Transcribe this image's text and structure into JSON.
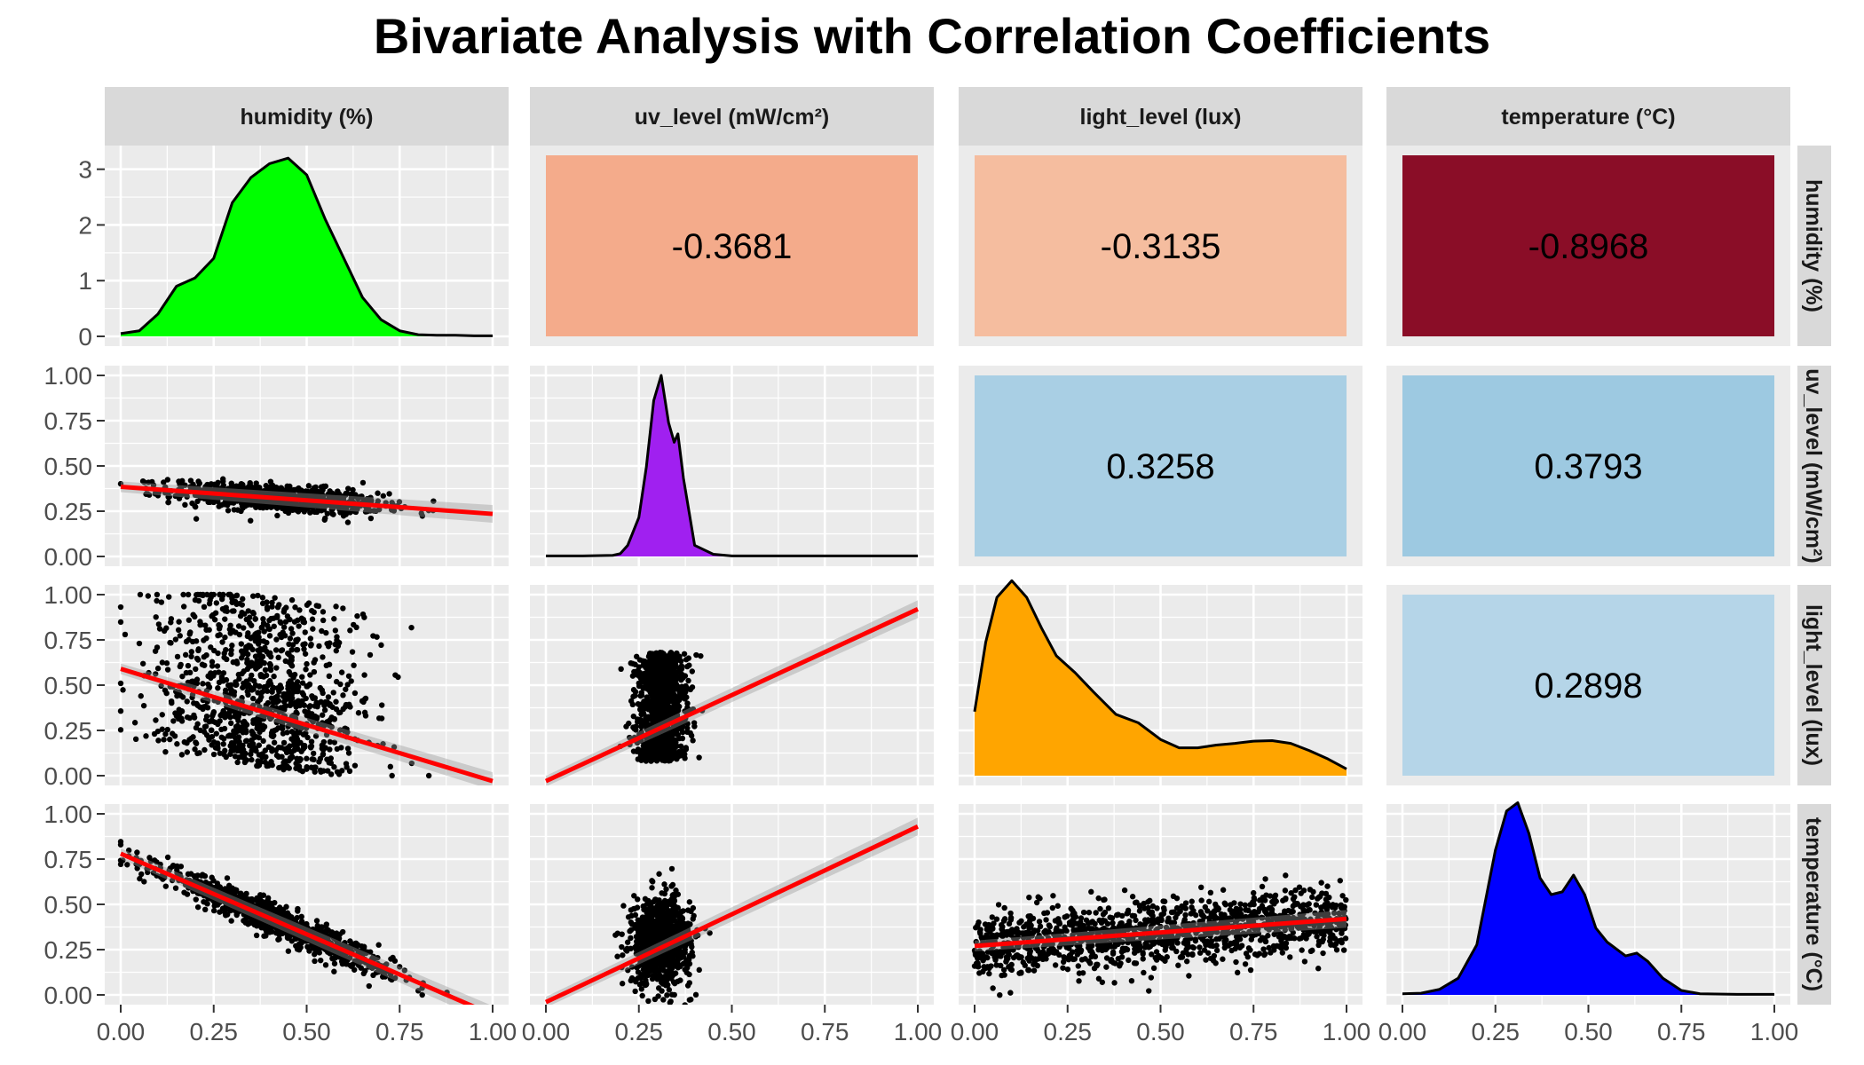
{
  "title": "Bivariate Analysis with Correlation Coefficients",
  "chart_data": {
    "type": "scatter",
    "title": "Bivariate Analysis with Correlation Coefficients",
    "variables": [
      "humidity (%)",
      "uv_level (mW/cm²)",
      "light_level (lux)",
      "temperature (°C)"
    ],
    "axis_ticks": [
      "0.00",
      "0.25",
      "0.50",
      "0.75",
      "1.00"
    ],
    "density_ticks": [
      "0",
      "1",
      "2",
      "3"
    ],
    "axis_range": [
      0,
      1
    ],
    "density_range": [
      0,
      3.25
    ],
    "grid": true,
    "diagonal_densities": [
      {
        "variable": "humidity (%)",
        "fill": "#00ff00",
        "x": [
          0,
          0.05,
          0.1,
          0.15,
          0.2,
          0.25,
          0.3,
          0.35,
          0.4,
          0.45,
          0.5,
          0.55,
          0.6,
          0.65,
          0.7,
          0.75,
          0.8,
          0.85,
          0.9,
          0.95,
          1.0
        ],
        "y": [
          0.05,
          0.1,
          0.4,
          0.9,
          1.05,
          1.4,
          2.4,
          2.85,
          3.1,
          3.2,
          2.9,
          2.1,
          1.4,
          0.7,
          0.3,
          0.1,
          0.03,
          0.02,
          0.02,
          0.01,
          0.01
        ]
      },
      {
        "variable": "uv_level (mW/cm²)",
        "fill": "#a020f0",
        "x": [
          0,
          0.1,
          0.18,
          0.2,
          0.22,
          0.25,
          0.27,
          0.29,
          0.31,
          0.33,
          0.345,
          0.355,
          0.37,
          0.4,
          0.45,
          0.5,
          0.6,
          0.8,
          1.0
        ],
        "y": [
          0.01,
          0.01,
          0.02,
          0.05,
          0.2,
          0.7,
          1.6,
          2.8,
          3.25,
          2.4,
          2.05,
          2.2,
          1.4,
          0.2,
          0.04,
          0.01,
          0.01,
          0.01,
          0.01
        ]
      },
      {
        "variable": "light_level (lux)",
        "fill": "#ffa500",
        "x": [
          0,
          0.03,
          0.06,
          0.1,
          0.14,
          0.18,
          0.22,
          0.27,
          0.32,
          0.38,
          0.44,
          0.5,
          0.55,
          0.6,
          0.65,
          0.7,
          0.75,
          0.8,
          0.85,
          0.9,
          0.95,
          1.0
        ],
        "y": [
          1.15,
          2.4,
          3.2,
          3.5,
          3.2,
          2.65,
          2.15,
          1.85,
          1.5,
          1.1,
          0.95,
          0.65,
          0.5,
          0.5,
          0.55,
          0.58,
          0.62,
          0.63,
          0.58,
          0.45,
          0.3,
          0.12
        ]
      },
      {
        "variable": "temperature (°C)",
        "fill": "#0000ff",
        "x": [
          0,
          0.05,
          0.1,
          0.15,
          0.2,
          0.25,
          0.28,
          0.31,
          0.34,
          0.37,
          0.4,
          0.43,
          0.46,
          0.49,
          0.52,
          0.55,
          0.6,
          0.63,
          0.66,
          0.7,
          0.75,
          0.8,
          0.9,
          1.0
        ],
        "y": [
          0.02,
          0.03,
          0.1,
          0.3,
          0.9,
          2.6,
          3.3,
          3.45,
          2.9,
          2.1,
          1.8,
          1.85,
          2.15,
          1.8,
          1.2,
          0.95,
          0.7,
          0.75,
          0.6,
          0.3,
          0.08,
          0.02,
          0.01,
          0.01
        ]
      }
    ],
    "correlations": [
      {
        "row": 0,
        "col": 1,
        "label": "-0.3681",
        "color": "#f4ab8b"
      },
      {
        "row": 0,
        "col": 2,
        "label": "-0.3135",
        "color": "#f5bd9f"
      },
      {
        "row": 0,
        "col": 3,
        "label": "-0.8968",
        "color": "#8a0d27"
      },
      {
        "row": 1,
        "col": 2,
        "label": "0.3258",
        "color": "#a9cfe4"
      },
      {
        "row": 1,
        "col": 3,
        "label": "0.3793",
        "color": "#9dc9e1"
      },
      {
        "row": 2,
        "col": 3,
        "label": "0.2898",
        "color": "#b5d5e8"
      }
    ],
    "scatter_panels": [
      {
        "row": 1,
        "col": 0,
        "x_var": "humidity (%)",
        "y_var": "uv_level (mW/cm²)",
        "fit": [
          [
            0,
            0.385
          ],
          [
            1,
            0.235
          ]
        ],
        "points": "humidity-uv",
        "point_count": 900
      },
      {
        "row": 2,
        "col": 0,
        "x_var": "humidity (%)",
        "y_var": "light_level (lux)",
        "fit": [
          [
            0,
            0.59
          ],
          [
            1,
            -0.03
          ]
        ],
        "points": "humidity-light",
        "point_count": 1100
      },
      {
        "row": 2,
        "col": 1,
        "x_var": "uv_level (mW/cm²)",
        "y_var": "light_level (lux)",
        "fit": [
          [
            0,
            -0.03
          ],
          [
            1,
            0.92
          ]
        ],
        "points": "uv-light",
        "point_count": 1000
      },
      {
        "row": 3,
        "col": 0,
        "x_var": "humidity (%)",
        "y_var": "temperature (°C)",
        "fit": [
          [
            0,
            0.78
          ],
          [
            1,
            -0.11
          ]
        ],
        "points": "humidity-temp",
        "point_count": 1000
      },
      {
        "row": 3,
        "col": 1,
        "x_var": "uv_level (mW/cm²)",
        "y_var": "temperature (°C)",
        "fit": [
          [
            0,
            -0.04
          ],
          [
            1,
            0.93
          ]
        ],
        "points": "uv-temp",
        "point_count": 900
      },
      {
        "row": 3,
        "col": 2,
        "x_var": "light_level (lux)",
        "y_var": "temperature (°C)",
        "fit": [
          [
            0,
            0.27
          ],
          [
            1,
            0.42
          ]
        ],
        "points": "light-temp",
        "point_count": 1300
      }
    ],
    "fit_color": "#ff0000",
    "point_color": "#000000"
  }
}
